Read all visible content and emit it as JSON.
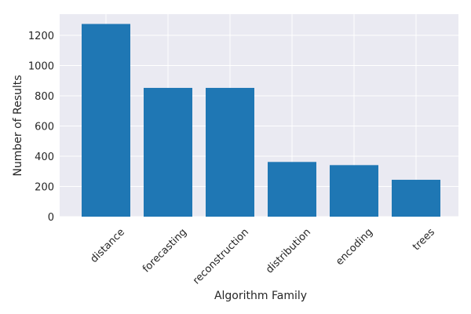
{
  "chart_data": {
    "type": "bar",
    "title": "",
    "xlabel": "Algorithm Family",
    "ylabel": "Number of Results",
    "categories": [
      "distance",
      "forecasting",
      "reconstruction",
      "distribution",
      "encoding",
      "trees"
    ],
    "values": [
      1275,
      852,
      852,
      362,
      341,
      244
    ],
    "ylim": [
      0,
      1340
    ],
    "yticks": [
      0,
      200,
      400,
      600,
      800,
      1000,
      1200
    ],
    "grid": true,
    "legend": "none",
    "colors": {
      "bar": "#1f77b4",
      "background": "#eaeaf2",
      "grid": "#ffffff"
    }
  }
}
